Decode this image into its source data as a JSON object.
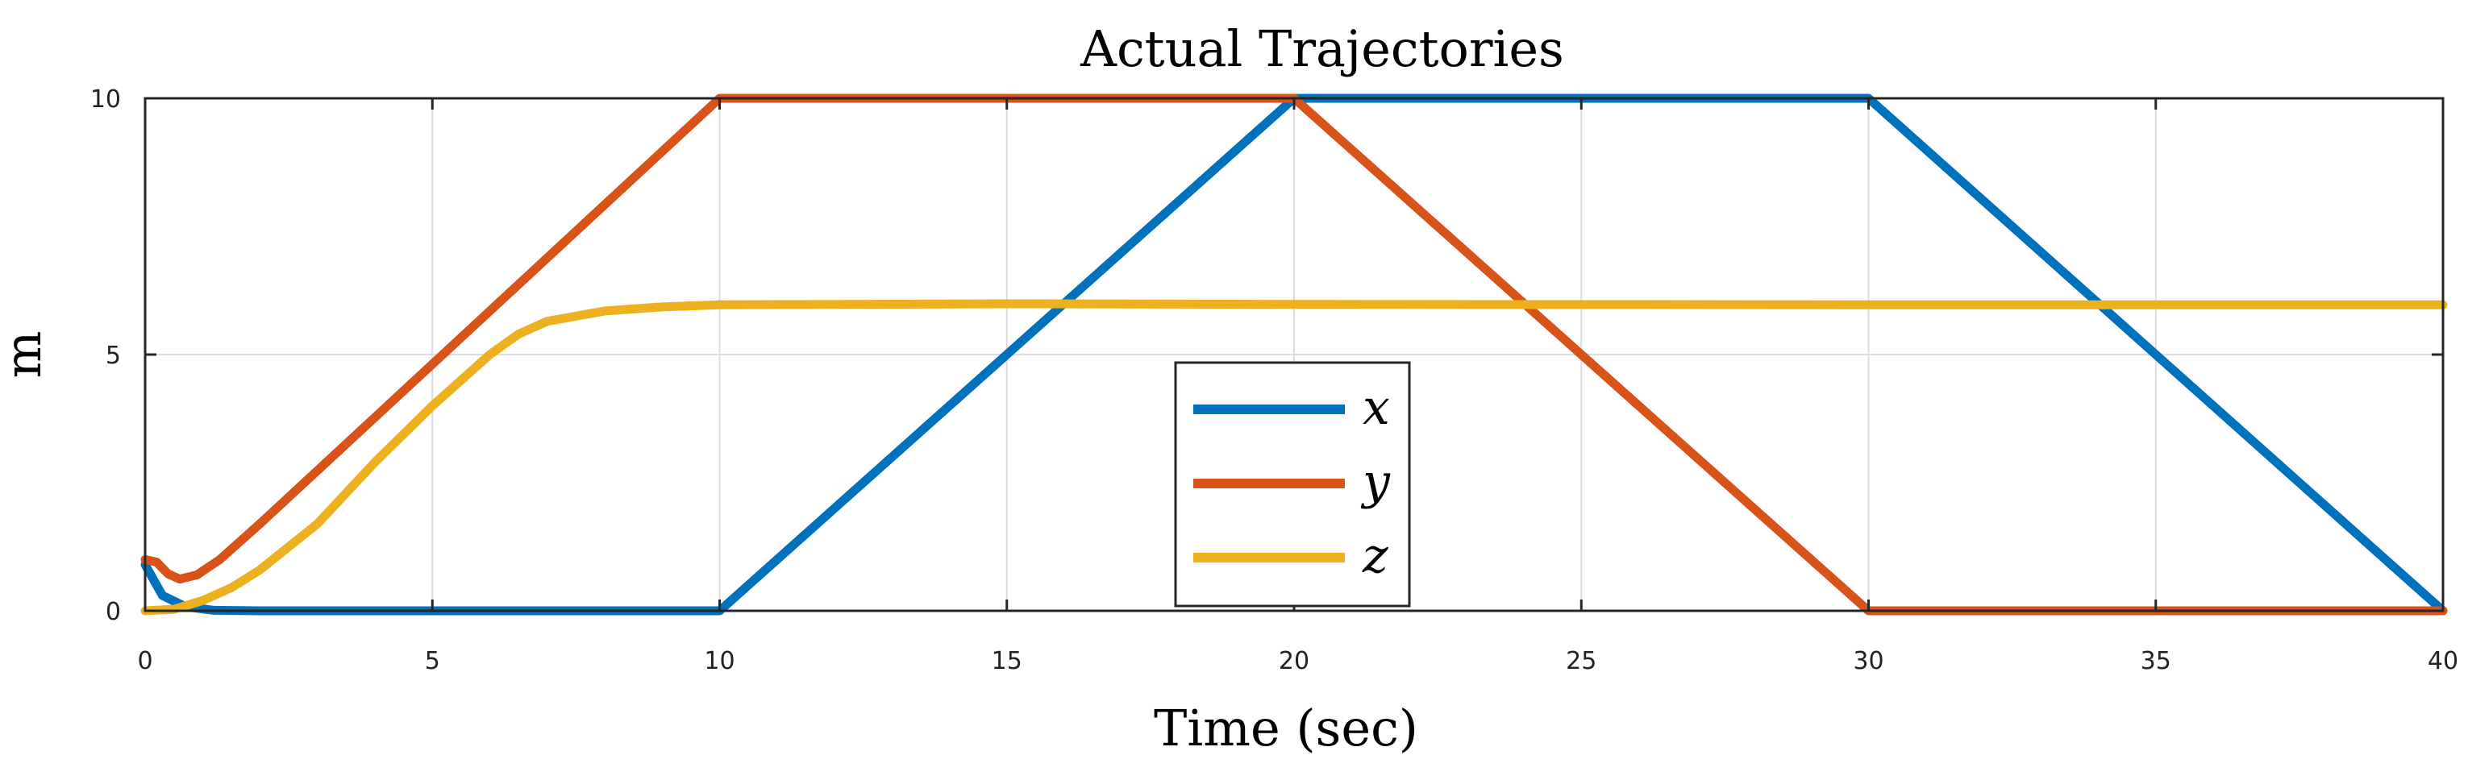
{
  "chart_data": {
    "type": "line",
    "title": "Actual Trajectories",
    "xlabel": "Time (sec)",
    "ylabel": "m",
    "xlim": [
      0,
      40
    ],
    "ylim": [
      0,
      10
    ],
    "xticks": [
      "0",
      "5",
      "10",
      "15",
      "20",
      "25",
      "30",
      "35",
      "40"
    ],
    "yticks": [
      "0",
      "5",
      "10"
    ],
    "grid": true,
    "legend_position": "bottom-center",
    "series": [
      {
        "name": "x",
        "color": "#0072BD",
        "x": [
          0,
          0.3,
          0.7,
          1.2,
          2,
          10,
          20,
          30,
          40
        ],
        "y": [
          0.9,
          0.3,
          0.08,
          0.01,
          0,
          0,
          10,
          10,
          0
        ]
      },
      {
        "name": "y",
        "color": "#D95319",
        "x": [
          0,
          0.2,
          0.4,
          0.6,
          0.9,
          1.3,
          2,
          10,
          20,
          30,
          40
        ],
        "y": [
          1.0,
          0.95,
          0.72,
          0.62,
          0.7,
          1.0,
          1.7,
          10,
          10,
          0,
          0
        ]
      },
      {
        "name": "z",
        "color": "#EDB120",
        "x": [
          0,
          0.5,
          1,
          1.5,
          2,
          3,
          4,
          5,
          6,
          6.5,
          7,
          8,
          9,
          10,
          15,
          20,
          30,
          40
        ],
        "y": [
          0,
          0.03,
          0.2,
          0.45,
          0.8,
          1.7,
          2.9,
          4.0,
          5.0,
          5.4,
          5.65,
          5.85,
          5.93,
          5.97,
          5.99,
          5.98,
          5.97,
          5.97
        ]
      }
    ]
  }
}
